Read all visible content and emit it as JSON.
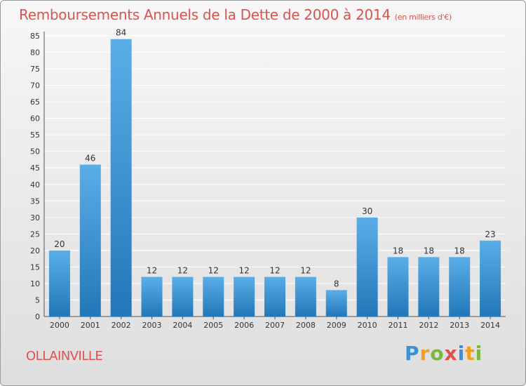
{
  "header": {
    "title": "Remboursements Annuels de la Dette de 2000 à 2014",
    "subtitle": "(en milliers d'€)"
  },
  "footer": {
    "commune": "OLLAINVILLE",
    "brand_logo": "Proxiti"
  },
  "colors": {
    "bar_light": "#5aaee8",
    "bar_dark": "#2277b8",
    "title": "#d9534f",
    "grid": "#ffffff"
  },
  "chart_data": {
    "type": "bar",
    "categories": [
      "2000",
      "2001",
      "2002",
      "2003",
      "2004",
      "2005",
      "2006",
      "2007",
      "2008",
      "2009",
      "2010",
      "2011",
      "2012",
      "2013",
      "2014"
    ],
    "values": [
      20,
      46,
      84,
      12,
      12,
      12,
      12,
      12,
      12,
      8,
      30,
      18,
      18,
      18,
      23
    ],
    "value_labels": [
      "20",
      "46",
      "84",
      "12",
      "12",
      "12",
      "12",
      "12",
      "12",
      "8",
      "30",
      "18",
      "18",
      "18",
      "23"
    ],
    "yticks": [
      0,
      5,
      10,
      15,
      20,
      25,
      30,
      35,
      40,
      45,
      50,
      55,
      60,
      65,
      70,
      75,
      80,
      85
    ],
    "ylim": [
      0,
      85
    ],
    "grid": true
  }
}
